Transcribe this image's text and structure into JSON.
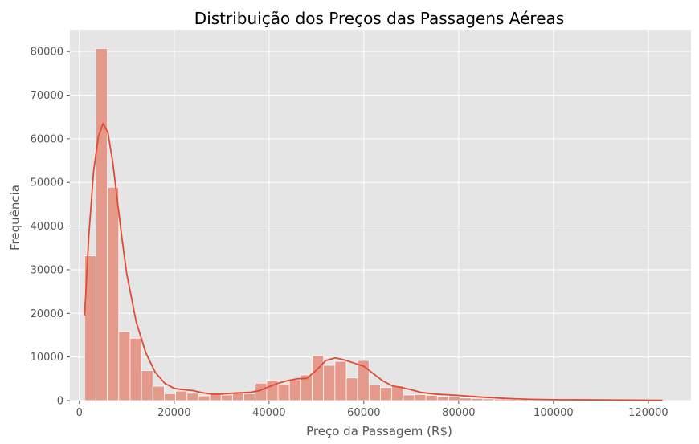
{
  "chart_data": {
    "type": "bar",
    "title": "Distribuição dos Preços das Passagens Aéreas",
    "xlabel": "Preço da Passagem (R$)",
    "ylabel": "Frequência",
    "xlim": [
      -2000,
      129000
    ],
    "ylim": [
      0,
      85000
    ],
    "xticks": [
      0,
      20000,
      40000,
      60000,
      80000,
      100000,
      120000
    ],
    "yticks": [
      0,
      10000,
      20000,
      30000,
      40000,
      50000,
      60000,
      70000,
      80000
    ],
    "grid": true,
    "bin_width": 2400,
    "bin_start": 1100,
    "counts": [
      33200,
      80700,
      48900,
      15800,
      14300,
      6900,
      3300,
      1600,
      2200,
      1700,
      1100,
      1600,
      1300,
      1800,
      1600,
      4000,
      4600,
      3800,
      4800,
      5900,
      10300,
      8100,
      9000,
      5200,
      9200,
      3600,
      3000,
      3400,
      1300,
      1400,
      1200,
      1000,
      900,
      600,
      500,
      400,
      350,
      300,
      250,
      200,
      180,
      160,
      140,
      120,
      100,
      90,
      80,
      70,
      60,
      50
    ],
    "kde": {
      "x": [
        1100,
        2000,
        3000,
        4000,
        5000,
        6000,
        7000,
        8000,
        9000,
        10000,
        12000,
        14000,
        16000,
        18000,
        20000,
        22000,
        24000,
        26000,
        28000,
        30000,
        32000,
        34000,
        36000,
        38000,
        40000,
        42000,
        44000,
        46000,
        48000,
        50000,
        52000,
        54000,
        56000,
        58000,
        60000,
        62000,
        64000,
        66000,
        68000,
        70000,
        72000,
        75000,
        80000,
        85000,
        90000,
        95000,
        100000,
        110000,
        120000,
        123000
      ],
      "y": [
        19500,
        38000,
        52500,
        60500,
        63500,
        61500,
        55000,
        46000,
        37000,
        29000,
        18000,
        11000,
        6500,
        4000,
        2800,
        2500,
        2300,
        1800,
        1500,
        1500,
        1700,
        1800,
        1900,
        2300,
        3200,
        4000,
        4600,
        5000,
        5100,
        7000,
        9200,
        9800,
        9300,
        8600,
        7900,
        6200,
        4500,
        3400,
        3000,
        2500,
        1900,
        1500,
        1200,
        800,
        500,
        300,
        200,
        150,
        100,
        80
      ]
    },
    "colors": {
      "bar_fill": "#E5998B",
      "bar_stroke": "#FFFFFF",
      "kde_line": "#E24A33",
      "plot_bg": "#E5E5E5",
      "grid": "#FFFFFF"
    }
  }
}
